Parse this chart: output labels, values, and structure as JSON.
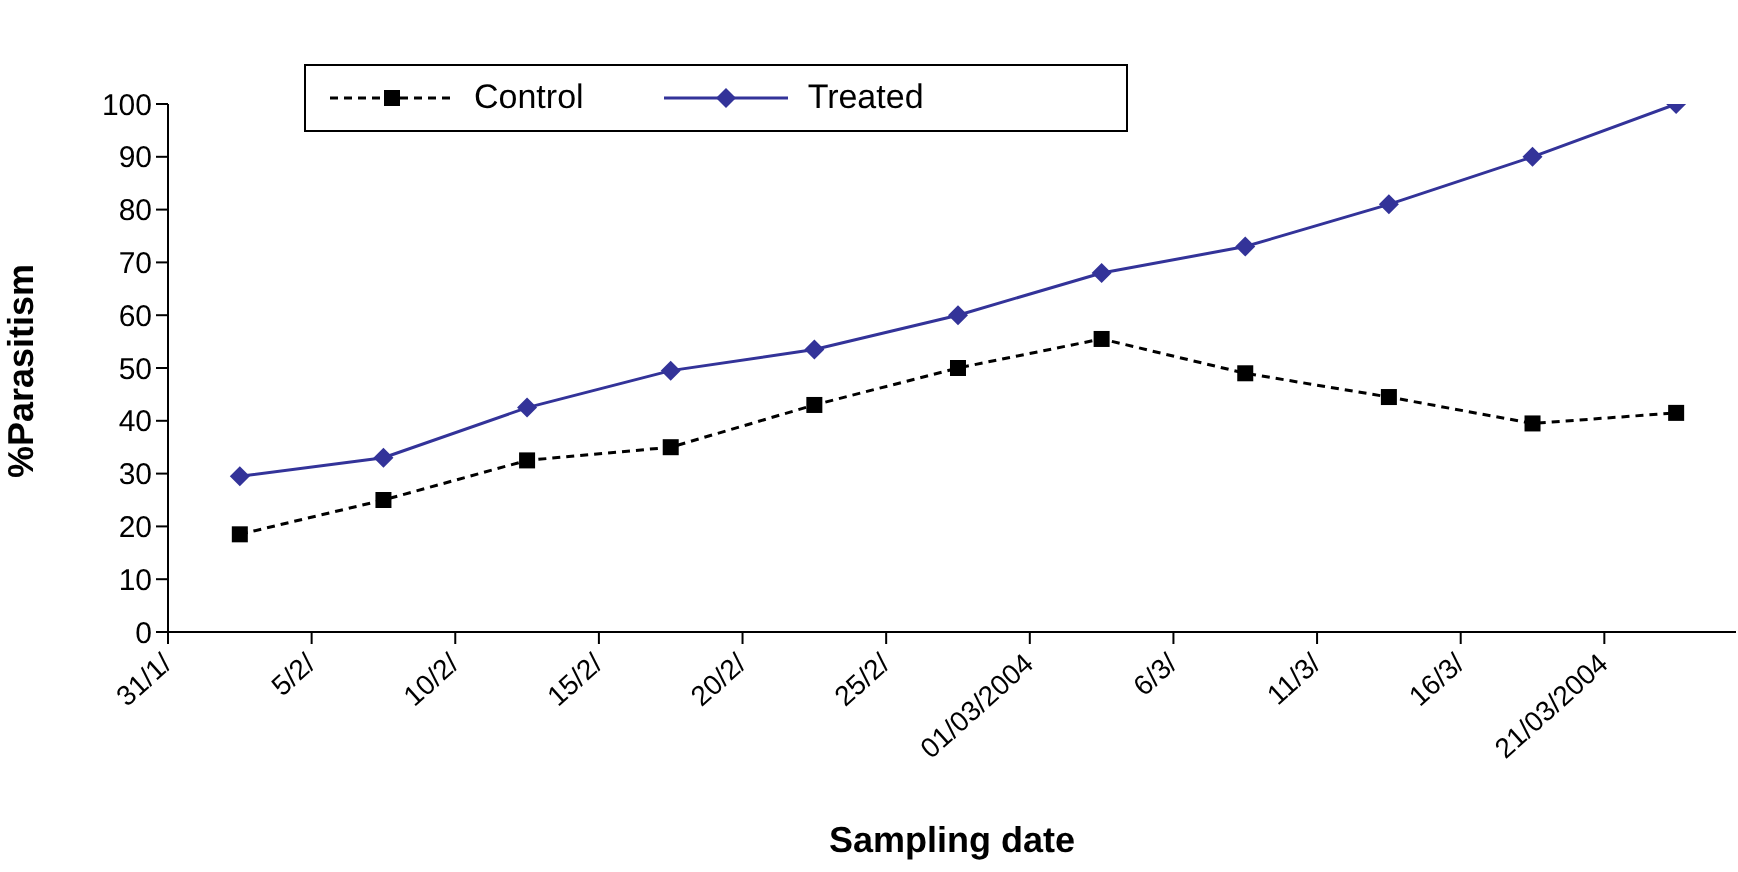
{
  "chart_data": {
    "type": "line",
    "xlabel": "Sampling date",
    "ylabel": "%Parasitism",
    "x": [
      "2004-02-02T12:00",
      "2004-02-07T12:00",
      "2004-02-12T12:00",
      "2004-02-17T12:00",
      "2004-02-22T12:00",
      "2004-02-27T12:00",
      "2004-03-03T12:00",
      "2004-03-08T12:00",
      "2004-03-13T12:00",
      "2004-03-18T12:00",
      "2004-03-23T12:00"
    ],
    "series": [
      {
        "name": "Control",
        "color": "#000000",
        "marker": "square",
        "line_style": "dashed",
        "values": [
          18.5,
          25,
          32.5,
          35,
          43,
          50,
          55.5,
          49,
          44.5,
          39.5,
          41.5
        ]
      },
      {
        "name": "Treated",
        "color": "#333399",
        "marker": "diamond",
        "line_style": "solid",
        "values": [
          29.5,
          33,
          42.5,
          49.5,
          53.5,
          60,
          68,
          73,
          81,
          90,
          100
        ]
      }
    ],
    "xlim": [
      "2004-01-31",
      "2004-03-25T14:00"
    ],
    "xticks": [
      {
        "value": "2004-01-31",
        "label": "31/1/"
      },
      {
        "value": "2004-02-05",
        "label": "5/2/"
      },
      {
        "value": "2004-02-10",
        "label": "10/2/"
      },
      {
        "value": "2004-02-15",
        "label": "15/2/"
      },
      {
        "value": "2004-02-20",
        "label": "20/2/"
      },
      {
        "value": "2004-02-25",
        "label": "25/2/"
      },
      {
        "value": "2004-03-01",
        "label": "01/03/2004"
      },
      {
        "value": "2004-03-06",
        "label": "6/3/"
      },
      {
        "value": "2004-03-11",
        "label": "11/3/"
      },
      {
        "value": "2004-03-16",
        "label": "16/3/"
      },
      {
        "value": "2004-03-21",
        "label": "21/03/2004"
      }
    ],
    "ylim": [
      0,
      100
    ],
    "yticks": [
      0,
      10,
      20,
      30,
      40,
      50,
      60,
      70,
      80,
      90,
      100
    ],
    "grid": false,
    "legend": "top left"
  }
}
